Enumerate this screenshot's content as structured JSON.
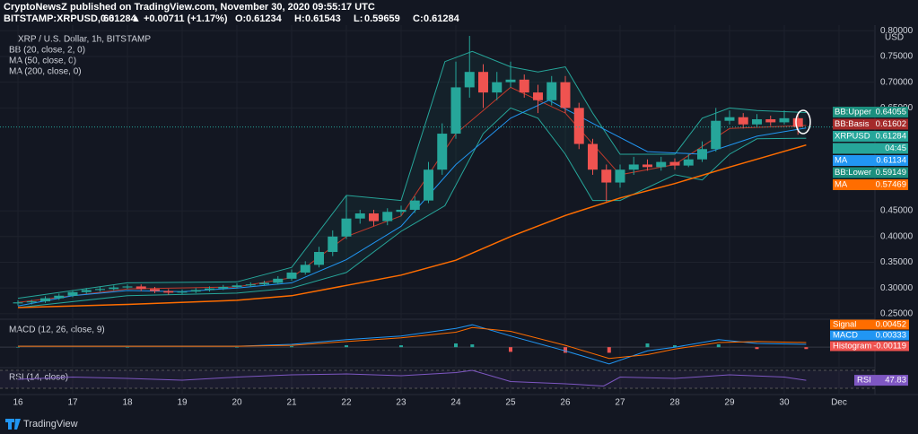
{
  "chart_data": {
    "type": "candlestick",
    "header": {
      "publisher": "CryptoNewsZ published on TradingView.com, November 30, 2020 09:55:17 UTC",
      "symbol": "BITSTAMP:XRPUSD, 60",
      "last": 0.61284,
      "change": "▲ +0.00711 (+1.17%)",
      "ohlc": [
        {
          "label": "O:",
          "value": 0.61234
        },
        {
          "label": "H:",
          "value": 0.61543
        },
        {
          "label": "L:",
          "value": 0.59659
        },
        {
          "label": "C:",
          "value": 0.61284
        }
      ]
    },
    "legend": [
      "XRP / U.S. Dollar, 1h, BITSTAMP",
      "BB (20, close, 2, 0)",
      "MA (50, close, 0)",
      "MA (200, close, 0)"
    ],
    "currency": "USD",
    "brand": "TradingView",
    "xlim": [
      15.672,
      31.656
    ],
    "xticks": [
      16,
      17,
      18,
      19,
      20,
      21,
      22,
      23,
      24,
      25,
      26,
      27,
      28,
      29,
      30,
      {
        "value": 31,
        "label": "Dec"
      }
    ],
    "ylim": [
      0.241,
      0.811
    ],
    "yticks": [
      {
        "value": 0.25,
        "label": "0.25000"
      },
      {
        "value": 0.3,
        "label": "0.30000"
      },
      {
        "value": 0.35,
        "label": "0.35000"
      },
      {
        "value": 0.4,
        "label": "0.40000"
      },
      {
        "value": 0.45,
        "label": "0.45000"
      },
      {
        "value": 0.65,
        "label": "0.65000"
      },
      {
        "value": 0.7,
        "label": "0.70000"
      },
      {
        "value": 0.75,
        "label": "0.75000"
      },
      {
        "value": 0.8,
        "label": "0.80000"
      }
    ],
    "grid": true,
    "candles": {
      "up_color": "#26a69a",
      "down_color": "#ef5350",
      "x": [
        16,
        16.25,
        16.5,
        16.75,
        17,
        17.25,
        17.5,
        17.75,
        18,
        18.25,
        18.5,
        18.75,
        19,
        19.25,
        19.5,
        19.75,
        20,
        20.25,
        20.5,
        20.75,
        21,
        21.25,
        21.5,
        21.75,
        22,
        22.25,
        22.5,
        22.75,
        23,
        23.25,
        23.5,
        23.75,
        24,
        24.25,
        24.5,
        24.75,
        25,
        25.25,
        25.5,
        25.75,
        26,
        26.25,
        26.5,
        26.75,
        27,
        27.25,
        27.5,
        27.75,
        28,
        28.25,
        28.5,
        28.75,
        29,
        29.25,
        29.5,
        29.75,
        30,
        30.25
      ],
      "open": [
        0.27,
        0.272,
        0.274,
        0.28,
        0.285,
        0.292,
        0.296,
        0.298,
        0.301,
        0.303,
        0.298,
        0.294,
        0.291,
        0.293,
        0.296,
        0.299,
        0.302,
        0.305,
        0.307,
        0.31,
        0.318,
        0.33,
        0.345,
        0.37,
        0.4,
        0.435,
        0.445,
        0.43,
        0.448,
        0.452,
        0.47,
        0.53,
        0.6,
        0.69,
        0.72,
        0.68,
        0.7,
        0.705,
        0.68,
        0.665,
        0.7,
        0.65,
        0.58,
        0.53,
        0.505,
        0.53,
        0.54,
        0.535,
        0.545,
        0.538,
        0.55,
        0.57,
        0.625,
        0.632,
        0.618,
        0.628,
        0.622,
        0.63
      ],
      "high": [
        0.276,
        0.277,
        0.284,
        0.289,
        0.296,
        0.3,
        0.302,
        0.305,
        0.307,
        0.307,
        0.302,
        0.298,
        0.297,
        0.3,
        0.303,
        0.306,
        0.309,
        0.311,
        0.314,
        0.323,
        0.336,
        0.352,
        0.38,
        0.412,
        0.48,
        0.452,
        0.452,
        0.455,
        0.46,
        0.478,
        0.545,
        0.62,
        0.74,
        0.79,
        0.735,
        0.72,
        0.74,
        0.715,
        0.695,
        0.712,
        0.712,
        0.66,
        0.59,
        0.54,
        0.54,
        0.555,
        0.55,
        0.555,
        0.552,
        0.56,
        0.585,
        0.65,
        0.645,
        0.64,
        0.638,
        0.635,
        0.645,
        0.638
      ],
      "low": [
        0.266,
        0.268,
        0.271,
        0.277,
        0.282,
        0.289,
        0.293,
        0.295,
        0.298,
        0.294,
        0.29,
        0.287,
        0.288,
        0.29,
        0.293,
        0.296,
        0.299,
        0.302,
        0.304,
        0.307,
        0.314,
        0.326,
        0.34,
        0.362,
        0.395,
        0.425,
        0.42,
        0.422,
        0.44,
        0.446,
        0.465,
        0.52,
        0.59,
        0.67,
        0.65,
        0.665,
        0.69,
        0.67,
        0.64,
        0.655,
        0.64,
        0.57,
        0.52,
        0.468,
        0.495,
        0.52,
        0.528,
        0.528,
        0.53,
        0.535,
        0.545,
        0.565,
        0.618,
        0.61,
        0.612,
        0.615,
        0.618,
        0.598
      ],
      "close": [
        0.272,
        0.274,
        0.28,
        0.285,
        0.292,
        0.296,
        0.298,
        0.301,
        0.303,
        0.298,
        0.294,
        0.291,
        0.293,
        0.296,
        0.299,
        0.302,
        0.305,
        0.307,
        0.31,
        0.318,
        0.33,
        0.345,
        0.37,
        0.4,
        0.435,
        0.445,
        0.43,
        0.448,
        0.452,
        0.47,
        0.53,
        0.6,
        0.69,
        0.72,
        0.68,
        0.7,
        0.705,
        0.68,
        0.665,
        0.7,
        0.65,
        0.58,
        0.53,
        0.505,
        0.53,
        0.54,
        0.535,
        0.545,
        0.538,
        0.55,
        0.57,
        0.625,
        0.632,
        0.618,
        0.628,
        0.622,
        0.63,
        0.613
      ]
    },
    "lines": [
      {
        "color": "#26a69a",
        "x": [
          16,
          18,
          20,
          21,
          22,
          23,
          23.8,
          24.3,
          25,
          25.5,
          26,
          26.5,
          27,
          28,
          28.5,
          29,
          29.5,
          30.4
        ],
        "values": [
          0.28,
          0.31,
          0.312,
          0.34,
          0.48,
          0.47,
          0.74,
          0.76,
          0.73,
          0.72,
          0.73,
          0.64,
          0.56,
          0.56,
          0.63,
          0.65,
          0.645,
          0.641
        ]
      },
      {
        "color": "#26a69a",
        "x": [
          16,
          18,
          20,
          21,
          22,
          23,
          23.8,
          24.5,
          25,
          25.5,
          26,
          26.5,
          27,
          28,
          28.5,
          29,
          29.5,
          30.4
        ],
        "values": [
          0.262,
          0.285,
          0.29,
          0.3,
          0.33,
          0.41,
          0.46,
          0.6,
          0.65,
          0.63,
          0.56,
          0.47,
          0.47,
          0.52,
          0.51,
          0.56,
          0.59,
          0.591
        ]
      },
      {
        "color": "#c0392b",
        "x": [
          16,
          18,
          20,
          21,
          22,
          23,
          24,
          25,
          26,
          27,
          28,
          29,
          30.4
        ],
        "values": [
          0.272,
          0.298,
          0.302,
          0.32,
          0.4,
          0.44,
          0.6,
          0.69,
          0.64,
          0.52,
          0.54,
          0.61,
          0.616
        ]
      },
      {
        "color": "#2196f3",
        "x": [
          16,
          17,
          18,
          19,
          20,
          21,
          22,
          23,
          24,
          25,
          25.7,
          26.5,
          27.5,
          28.5,
          29.5,
          30.4
        ],
        "values": [
          0.265,
          0.285,
          0.295,
          0.293,
          0.3,
          0.31,
          0.355,
          0.42,
          0.54,
          0.63,
          0.665,
          0.62,
          0.565,
          0.56,
          0.595,
          0.611
        ]
      },
      {
        "color": "#ff6d00",
        "x": [
          16,
          18,
          20,
          21,
          22,
          23,
          24,
          25,
          26,
          27,
          28,
          29,
          30.4
        ],
        "values": [
          0.262,
          0.268,
          0.276,
          0.285,
          0.305,
          0.325,
          0.354,
          0.4,
          0.441,
          0.475,
          0.503,
          0.535,
          0.578
        ]
      }
    ],
    "price_tags": [
      {
        "name": "BB:Upper",
        "value": 0.64055,
        "color": "#1b8f7e"
      },
      {
        "name": "BB:Basis",
        "value": 0.61602,
        "color": "#a52a2a"
      },
      {
        "name": "XRPUSD",
        "value": 0.61284,
        "color": "#26a69a"
      },
      {
        "name": "04:45",
        "color": "#26a69a"
      },
      {
        "name": "MA",
        "value": 0.61134,
        "color": "#2196f3"
      },
      {
        "name": "BB:Lower",
        "value": 0.59149,
        "color": "#1b8f7e"
      },
      {
        "name": "MA",
        "value": 0.57469,
        "color": "#ff6d00"
      }
    ],
    "macd": {
      "title": "MACD (12, 26, close, 9)",
      "ylim": [
        -0.02,
        0.028
      ],
      "x": [
        16,
        18,
        20,
        21,
        22,
        23,
        24,
        24.3,
        25,
        26,
        26.8,
        27.5,
        28,
        28.8,
        29.5,
        30.4
      ],
      "macd": [
        0.001,
        0.001,
        0.001,
        0.003,
        0.008,
        0.012,
        0.02,
        0.024,
        0.012,
        -0.004,
        -0.018,
        -0.004,
        0.0,
        0.008,
        0.004,
        0.003
      ],
      "signal": [
        0.001,
        0.001,
        0.001,
        0.002,
        0.006,
        0.01,
        0.016,
        0.021,
        0.017,
        0.002,
        -0.012,
        -0.008,
        -0.002,
        0.005,
        0.006,
        0.005
      ],
      "histogram": [
        0,
        0,
        0,
        0.001,
        0.002,
        0.002,
        0.004,
        0.003,
        -0.005,
        -0.006,
        -0.006,
        0.004,
        0.002,
        0.003,
        -0.002,
        -0.002
      ],
      "macd_color": "#2196f3",
      "signal_color": "#ff6d00",
      "up_color": "#26a69a",
      "down_color": "#ef5350",
      "tags": [
        {
          "name": "Signal",
          "value": 0.00452,
          "color": "#ff6d00"
        },
        {
          "name": "MACD",
          "value": 0.00333,
          "color": "#2196f3"
        },
        {
          "name": "Histogram",
          "value": -0.00119,
          "color": "#ef5350"
        }
      ]
    },
    "rsi": {
      "title": "RSI (14, close)",
      "ylim": [
        0,
        100
      ],
      "band": [
        30,
        70
      ],
      "color": "#7e57c2",
      "x": [
        16,
        17,
        18,
        19,
        20,
        21,
        22,
        23,
        24,
        24.3,
        25,
        26,
        26.7,
        27,
        28,
        29,
        30,
        30.4
      ],
      "values": [
        50,
        55,
        52,
        48,
        55,
        60,
        62,
        58,
        65,
        70,
        45,
        40,
        35,
        55,
        52,
        60,
        55,
        47.83
      ],
      "tag": {
        "name": "RSI",
        "value": 47.83
      }
    }
  }
}
